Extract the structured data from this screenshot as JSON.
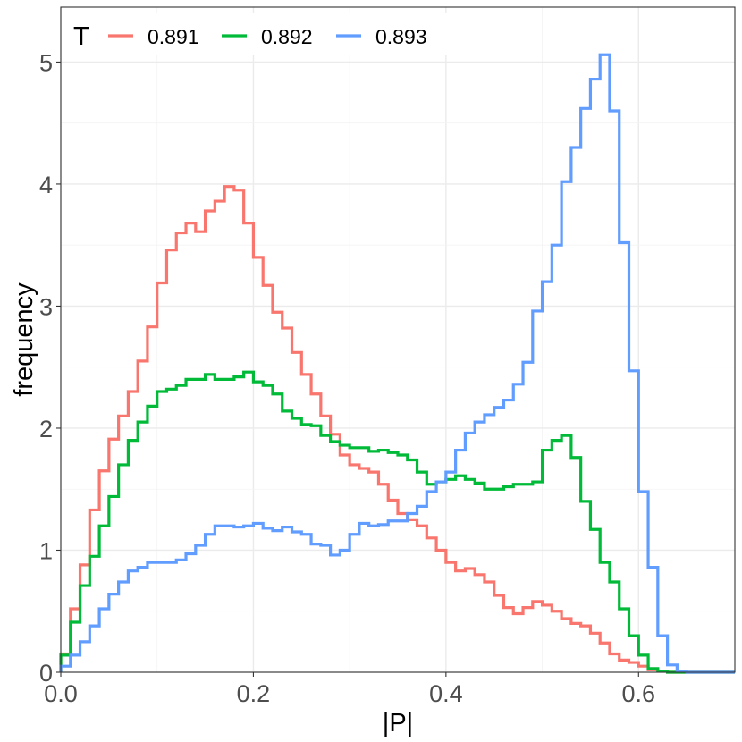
{
  "chart_data": {
    "type": "line",
    "step": true,
    "title": "",
    "xlabel": "|P|",
    "ylabel": "frequency",
    "xlim": [
      0,
      0.7
    ],
    "ylim": [
      0,
      5.45
    ],
    "x_ticks": [
      0.0,
      0.2,
      0.4,
      0.6
    ],
    "x_tick_labels": [
      "0.0",
      "0.2",
      "0.4",
      "0.6"
    ],
    "y_ticks": [
      0,
      1,
      2,
      3,
      4,
      5
    ],
    "y_tick_labels": [
      "0",
      "1",
      "2",
      "3",
      "4",
      "5"
    ],
    "grid": true,
    "legend": {
      "title": "T",
      "position": "top-left, inside"
    },
    "bin_width": 0.01,
    "bin_start": 0.0,
    "series": [
      {
        "name": "0.891",
        "color": "#F8766D",
        "values": [
          0.15,
          0.52,
          0.88,
          1.33,
          1.65,
          1.91,
          2.1,
          2.3,
          2.55,
          2.83,
          3.19,
          3.46,
          3.6,
          3.68,
          3.61,
          3.78,
          3.86,
          3.98,
          3.95,
          3.68,
          3.4,
          3.17,
          2.95,
          2.82,
          2.62,
          2.44,
          2.28,
          2.1,
          1.95,
          1.78,
          1.7,
          1.67,
          1.64,
          1.54,
          1.41,
          1.3,
          1.25,
          1.2,
          1.1,
          1.0,
          0.9,
          0.83,
          0.85,
          0.8,
          0.74,
          0.63,
          0.53,
          0.48,
          0.53,
          0.58,
          0.55,
          0.5,
          0.44,
          0.4,
          0.38,
          0.32,
          0.24,
          0.15,
          0.1,
          0.08,
          0.05,
          0.02,
          0.01,
          0.0,
          0.0,
          0.0,
          0.0,
          0.0,
          0.0,
          0.0
        ]
      },
      {
        "name": "0.892",
        "color": "#00BA38",
        "values": [
          0.14,
          0.41,
          0.71,
          0.95,
          1.2,
          1.44,
          1.7,
          1.9,
          2.05,
          2.18,
          2.3,
          2.32,
          2.35,
          2.4,
          2.4,
          2.44,
          2.4,
          2.4,
          2.42,
          2.46,
          2.38,
          2.35,
          2.28,
          2.14,
          2.08,
          2.03,
          2.02,
          1.94,
          1.89,
          1.86,
          1.84,
          1.84,
          1.81,
          1.82,
          1.8,
          1.78,
          1.74,
          1.64,
          1.54,
          1.56,
          1.58,
          1.61,
          1.58,
          1.55,
          1.5,
          1.5,
          1.52,
          1.54,
          1.54,
          1.56,
          1.82,
          1.9,
          1.94,
          1.76,
          1.4,
          1.17,
          0.9,
          0.74,
          0.52,
          0.3,
          0.14,
          0.03,
          0.01,
          0.0,
          0.0,
          0.0,
          0.0,
          0.0,
          0.0,
          0.0
        ]
      },
      {
        "name": "0.893",
        "color": "#619CFF",
        "values": [
          0.05,
          0.14,
          0.25,
          0.38,
          0.52,
          0.64,
          0.74,
          0.83,
          0.86,
          0.9,
          0.9,
          0.9,
          0.92,
          0.97,
          1.04,
          1.13,
          1.2,
          1.2,
          1.19,
          1.2,
          1.22,
          1.18,
          1.16,
          1.19,
          1.15,
          1.13,
          1.05,
          1.04,
          0.96,
          1.0,
          1.13,
          1.22,
          1.2,
          1.21,
          1.24,
          1.24,
          1.3,
          1.36,
          1.48,
          1.56,
          1.64,
          1.82,
          1.96,
          2.05,
          2.11,
          2.17,
          2.23,
          2.36,
          2.54,
          2.96,
          3.2,
          3.5,
          4.02,
          4.3,
          4.62,
          4.86,
          5.06,
          4.6,
          3.52,
          2.47,
          1.48,
          0.86,
          0.3,
          0.06,
          0.01,
          0.0,
          0.0,
          0.0,
          0.0,
          0.0
        ]
      }
    ]
  }
}
